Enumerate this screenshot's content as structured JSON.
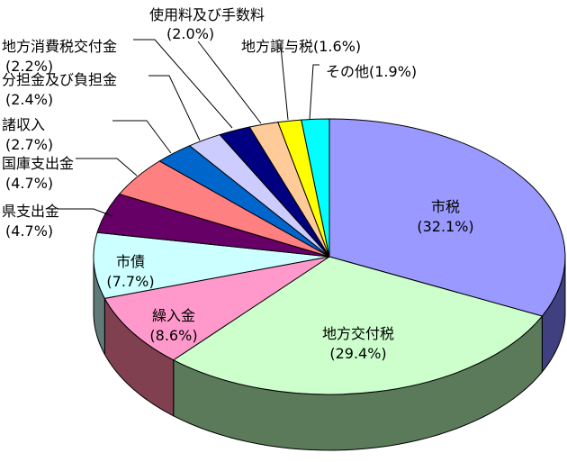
{
  "chart_data": {
    "type": "pie",
    "title": "",
    "slices": [
      {
        "label": "市税",
        "value": 32.1,
        "value_text": "(32.1%)",
        "color": "#9999ff",
        "side": "#404080"
      },
      {
        "label": "地方交付税",
        "value": 29.4,
        "value_text": "(29.4%)",
        "color": "#ccffcc",
        "side": "#5a7a5a"
      },
      {
        "label": "繰入金",
        "value": 8.6,
        "value_text": "(8.6%)",
        "color": "#ff99cc",
        "side": "#804050"
      },
      {
        "label": "市債",
        "value": 7.7,
        "value_text": "(7.7%)",
        "color": "#ccffff",
        "side": "#607a7a"
      },
      {
        "label": "県支出金",
        "value": 4.7,
        "value_text": "(4.7%)",
        "color": "#660066",
        "side": "#330033"
      },
      {
        "label": "国庫支出金",
        "value": 4.7,
        "value_text": "(4.7%)",
        "color": "#ff8080",
        "side": "#804040"
      },
      {
        "label": "諸収入",
        "value": 2.7,
        "value_text": "(2.7%)",
        "color": "#0066cc",
        "side": "#003366"
      },
      {
        "label": "分担金及び負担金",
        "value": 2.4,
        "value_text": "(2.4%)",
        "color": "#ccccff",
        "side": "#666680"
      },
      {
        "label": "地方消費税交付金",
        "value": 2.2,
        "value_text": "(2.2%)",
        "color": "#000080",
        "side": "#000040"
      },
      {
        "label": "使用料及び手数料",
        "value": 2.0,
        "value_text": "(2.0%)",
        "color": "#ffcc99",
        "side": "#806650"
      },
      {
        "label": "地方譲与税",
        "value": 1.6,
        "value_text": "(1.6%)",
        "color": "#ffff00",
        "side": "#808000"
      },
      {
        "label": "その他",
        "value": 1.9,
        "value_text": "(1.9%)",
        "color": "#00ffff",
        "side": "#008080"
      }
    ]
  }
}
